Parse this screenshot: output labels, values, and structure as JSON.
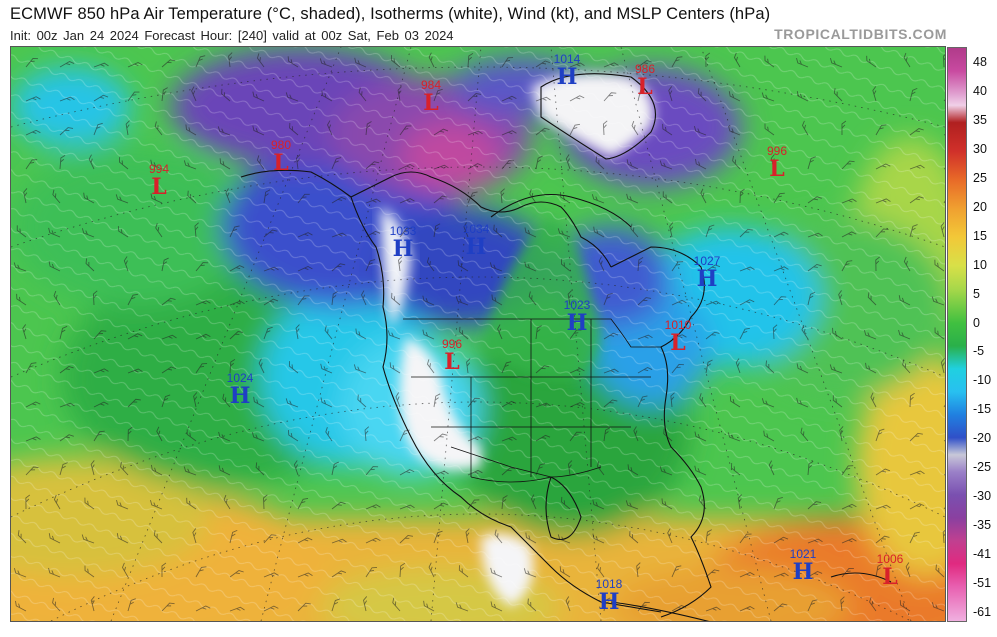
{
  "header": {
    "title": "ECMWF 850 hPa Air Temperature (°C, shaded), Isotherms (white), Wind (kt), and MSLP Centers (hPa)",
    "subtitle": "Init: 00z Jan 24 2024   Forecast Hour: [240]   valid at 00z Sat, Feb 03 2024",
    "credit": "TROPICALTIDBITS.COM"
  },
  "colors": {
    "low": "#d8212a",
    "high": "#1f3fc4"
  },
  "pressure_centers": [
    {
      "type": "L",
      "value": "984",
      "color": "low"
    },
    {
      "type": "H",
      "value": "1014",
      "color": "high"
    },
    {
      "type": "L",
      "value": "986",
      "color": "low"
    },
    {
      "type": "L",
      "value": "980",
      "color": "low"
    },
    {
      "type": "L",
      "value": "994",
      "color": "low"
    },
    {
      "type": "L",
      "value": "996",
      "color": "low"
    },
    {
      "type": "H",
      "value": "1033",
      "color": "high"
    },
    {
      "type": "H",
      "value": "1034",
      "color": "high"
    },
    {
      "type": "H",
      "value": "1027",
      "color": "high"
    },
    {
      "type": "H",
      "value": "1023",
      "color": "high"
    },
    {
      "type": "L",
      "value": "1010",
      "color": "low"
    },
    {
      "type": "L",
      "value": "996",
      "color": "low"
    },
    {
      "type": "H",
      "value": "1024",
      "color": "high"
    },
    {
      "type": "H",
      "value": "1021",
      "color": "high"
    },
    {
      "type": "L",
      "value": "1006",
      "color": "low"
    },
    {
      "type": "H",
      "value": "1018",
      "color": "high"
    }
  ],
  "colorbar": {
    "ticks": [
      "48",
      "40",
      "35",
      "30",
      "25",
      "20",
      "15",
      "10",
      "5",
      "0",
      "-5",
      "-10",
      "-15",
      "-20",
      "-25",
      "-30",
      "-35",
      "-41",
      "-51",
      "-61"
    ]
  }
}
